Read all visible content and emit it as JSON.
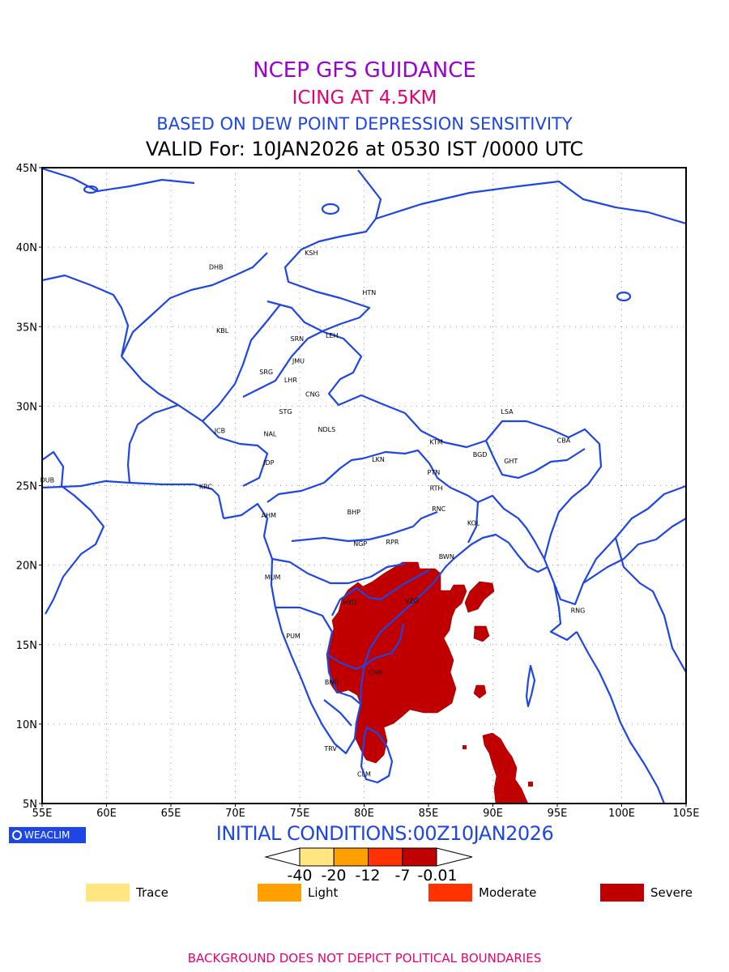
{
  "header": {
    "title": "NCEP GFS GUIDANCE",
    "subtitle": "ICING AT 4.5KM",
    "basis": "BASED ON DEW POINT DEPRESSION SENSITIVITY",
    "valid": "VALID For: 10JAN2026 at 0530 IST /0000 UTC"
  },
  "axes": {
    "x_ticks": [
      "55E",
      "60E",
      "65E",
      "70E",
      "75E",
      "80E",
      "85E",
      "90E",
      "95E",
      "100E",
      "105E"
    ],
    "y_ticks": [
      "45N",
      "40N",
      "35N",
      "30N",
      "25N",
      "20N",
      "15N",
      "10N",
      "5N"
    ],
    "lon_range": [
      55,
      105
    ],
    "lat_range": [
      5,
      45
    ],
    "grid": true
  },
  "cities": [
    {
      "code": "KSH",
      "lon": 75.9,
      "lat": 39.5
    },
    {
      "code": "DHB",
      "lon": 68.5,
      "lat": 38.6
    },
    {
      "code": "HTN",
      "lon": 80.4,
      "lat": 37.0
    },
    {
      "code": "KBL",
      "lon": 69.0,
      "lat": 34.6
    },
    {
      "code": "SRN",
      "lon": 74.8,
      "lat": 34.1
    },
    {
      "code": "LEH",
      "lon": 77.5,
      "lat": 34.3
    },
    {
      "code": "JMU",
      "lon": 74.9,
      "lat": 32.7
    },
    {
      "code": "SRG",
      "lon": 72.4,
      "lat": 32.0
    },
    {
      "code": "LHR",
      "lon": 74.3,
      "lat": 31.5
    },
    {
      "code": "CNG",
      "lon": 76.0,
      "lat": 30.6
    },
    {
      "code": "STG",
      "lon": 73.9,
      "lat": 29.5
    },
    {
      "code": "LSA",
      "lon": 91.1,
      "lat": 29.5
    },
    {
      "code": "JCB",
      "lon": 68.8,
      "lat": 28.3
    },
    {
      "code": "NAL",
      "lon": 72.7,
      "lat": 28.1
    },
    {
      "code": "NDLS",
      "lon": 77.1,
      "lat": 28.4
    },
    {
      "code": "KTM",
      "lon": 85.6,
      "lat": 27.6
    },
    {
      "code": "CBA",
      "lon": 95.5,
      "lat": 27.7
    },
    {
      "code": "BGD",
      "lon": 89.0,
      "lat": 26.8
    },
    {
      "code": "GHT",
      "lon": 91.4,
      "lat": 26.4
    },
    {
      "code": "JDP",
      "lon": 72.6,
      "lat": 26.3
    },
    {
      "code": "LKN",
      "lon": 81.1,
      "lat": 26.5
    },
    {
      "code": "PTN",
      "lon": 85.4,
      "lat": 25.7
    },
    {
      "code": "DUB",
      "lon": 55.4,
      "lat": 25.2
    },
    {
      "code": "KRC",
      "lon": 67.7,
      "lat": 24.8
    },
    {
      "code": "RTH",
      "lon": 85.6,
      "lat": 24.7
    },
    {
      "code": "BHP",
      "lon": 79.2,
      "lat": 23.2
    },
    {
      "code": "AHM",
      "lon": 72.6,
      "lat": 23.0
    },
    {
      "code": "RNC",
      "lon": 85.8,
      "lat": 23.4
    },
    {
      "code": "KOL",
      "lon": 88.5,
      "lat": 22.5
    },
    {
      "code": "NGP",
      "lon": 79.7,
      "lat": 21.2
    },
    {
      "code": "RPR",
      "lon": 82.2,
      "lat": 21.3
    },
    {
      "code": "BWN",
      "lon": 86.4,
      "lat": 20.4
    },
    {
      "code": "MUM",
      "lon": 72.9,
      "lat": 19.1
    },
    {
      "code": "HYD",
      "lon": 78.9,
      "lat": 17.5
    },
    {
      "code": "VZG",
      "lon": 83.7,
      "lat": 17.6
    },
    {
      "code": "RNG",
      "lon": 96.6,
      "lat": 17.0
    },
    {
      "code": "PUM",
      "lon": 74.5,
      "lat": 15.4
    },
    {
      "code": "CHN",
      "lon": 80.9,
      "lat": 13.1
    },
    {
      "code": "BNG",
      "lon": 77.5,
      "lat": 12.5
    },
    {
      "code": "TRV",
      "lon": 77.4,
      "lat": 8.3
    },
    {
      "code": "CLM",
      "lon": 80.0,
      "lat": 6.7
    }
  ],
  "initial_conditions": "INITIAL CONDITIONS:00Z10JAN2026",
  "colorbar": {
    "colors": [
      "#ffe680",
      "#ffa000",
      "#ff3200",
      "#c00000"
    ],
    "labels": [
      "-40",
      "-20",
      "-12",
      "-7",
      "-0.01"
    ]
  },
  "legend": [
    {
      "label": "Trace",
      "color": "#ffe680"
    },
    {
      "label": "Light",
      "color": "#ffa000"
    },
    {
      "label": "Moderate",
      "color": "#ff3200"
    },
    {
      "label": "Severe",
      "color": "#c00000"
    }
  ],
  "logo_text": "WEACLIM",
  "footer": "BACKGROUND DOES NOT DEPICT POLITICAL BOUNDARIES",
  "colors": {
    "coastline": "#1e46e6",
    "severe_icing": "#c00000",
    "title": "#9a00d0",
    "subtitle": "#e8006e",
    "basis": "#1e46e6"
  }
}
